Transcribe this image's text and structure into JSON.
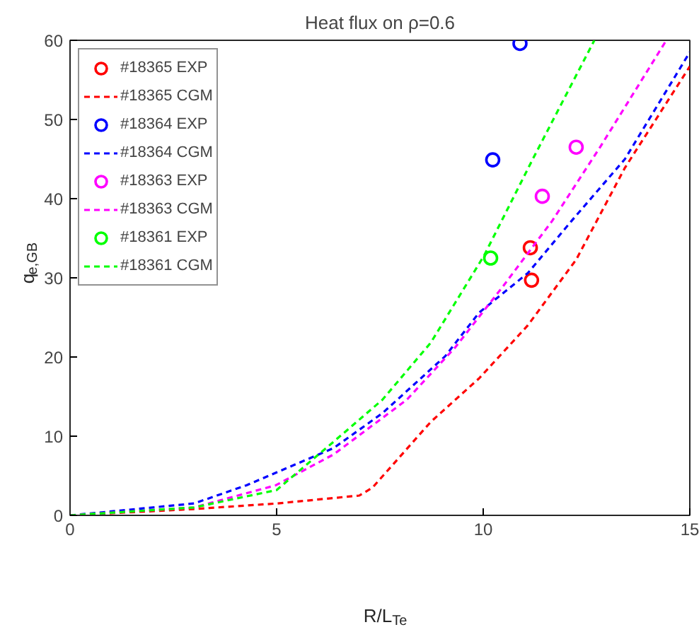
{
  "chart_data": {
    "type": "line",
    "title": "Heat flux on ρ=0.6",
    "xlabel": "R/L$_{Te}$",
    "ylabel": "q$_{e,GB}$",
    "xlim": [
      0,
      15
    ],
    "ylim": [
      0,
      60
    ],
    "xticks": [
      0,
      5,
      10,
      15
    ],
    "yticks": [
      0,
      10,
      20,
      30,
      40,
      50,
      60
    ],
    "grid": false,
    "legend": "top left",
    "series": [
      {
        "name": "#18365 EXP",
        "type": "scatter",
        "marker": "circle",
        "color": "#ff0000",
        "x": [
          11.14,
          11.17
        ],
        "values": [
          33.8,
          29.7
        ]
      },
      {
        "name": "#18365 CGM",
        "line_style": "dashed",
        "color": "#ff0000",
        "x": [
          0,
          3,
          5,
          7,
          7.32,
          8.73,
          9.9,
          11.08,
          12.25,
          13.43,
          15
        ],
        "values": [
          0,
          0.8,
          1.5,
          2.5,
          3.5,
          11.8,
          17.3,
          24,
          32.3,
          43.9,
          56.7
        ]
      },
      {
        "name": "#18364 EXP",
        "type": "scatter",
        "marker": "circle",
        "color": "#0000ff",
        "x": [
          10.89,
          10.23
        ],
        "values": [
          59.6,
          44.9
        ]
      },
      {
        "name": "#18364 CGM",
        "line_style": "dashed",
        "color": "#0000ff",
        "x": [
          0,
          3,
          4.27,
          6.38,
          7.56,
          9.08,
          9.9,
          11.08,
          12.14,
          13.43,
          15
        ],
        "values": [
          0,
          1.5,
          3.8,
          8.5,
          12.9,
          20.1,
          25.6,
          30.6,
          37.2,
          45,
          58.5
        ]
      },
      {
        "name": "#18363 EXP",
        "type": "scatter",
        "marker": "circle",
        "color": "#ff00ff",
        "x": [
          11.43,
          12.25
        ],
        "values": [
          40.3,
          46.5
        ]
      },
      {
        "name": "#18363 CGM",
        "line_style": "dashed",
        "color": "#ff00ff",
        "x": [
          0,
          3,
          4.98,
          6.38,
          8.15,
          9.32,
          10.49,
          11.67,
          12.84,
          14.42
        ],
        "values": [
          0,
          1,
          3.8,
          7.7,
          14.6,
          21.2,
          29,
          37.2,
          46.6,
          59.9
        ]
      },
      {
        "name": "#18361 EXP",
        "type": "scatter",
        "marker": "circle",
        "color": "#00ff00",
        "x": [
          10.18
        ],
        "values": [
          32.5
        ]
      },
      {
        "name": "#18361 CGM",
        "line_style": "dashed",
        "color": "#00ff00",
        "x": [
          0,
          3,
          5,
          6.38,
          7.56,
          8.73,
          10.02,
          11.2,
          12.69
        ],
        "values": [
          0,
          1,
          3.2,
          9.3,
          14.6,
          21.8,
          32.8,
          45,
          60
        ]
      }
    ]
  }
}
